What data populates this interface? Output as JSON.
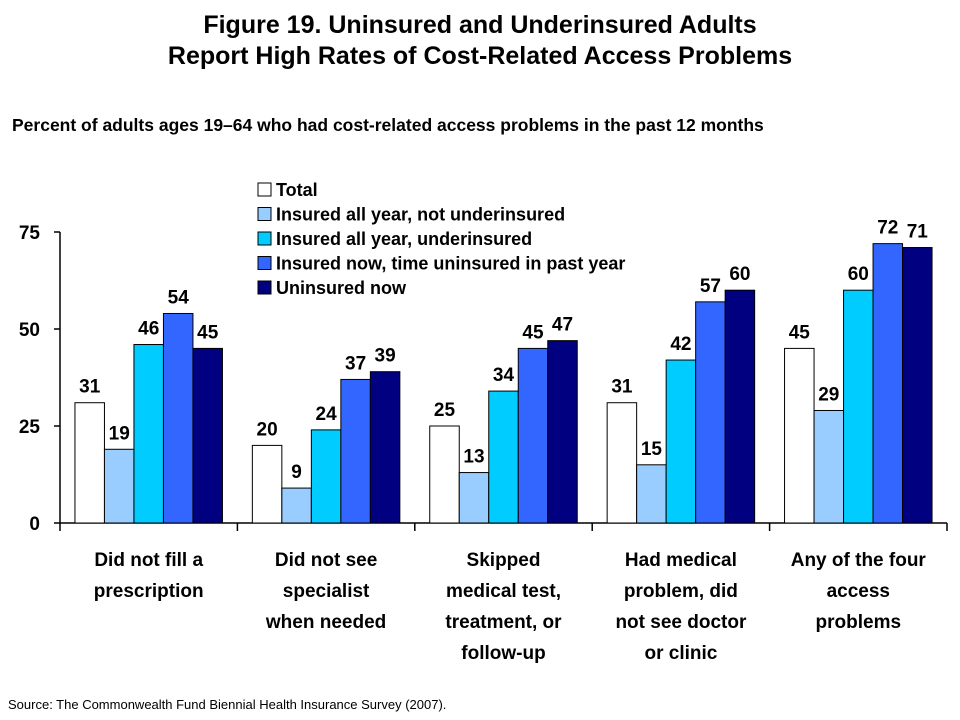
{
  "title": {
    "line1": "Figure 19. Uninsured and Underinsured Adults",
    "line2": "Report High Rates of Cost-Related Access Problems"
  },
  "subtitle": "Percent of adults ages 19–64 who had cost-related access problems in the past 12 months",
  "source": "Source: The Commonwealth Fund Biennial Health Insurance Survey (2007).",
  "chart_data": {
    "type": "bar",
    "title": "",
    "xlabel": "",
    "ylabel": "",
    "ylim": [
      0,
      75
    ],
    "yticks": [
      0,
      25,
      50,
      75
    ],
    "grid": false,
    "legend_position": "top-center",
    "categories": [
      [
        "Did not fill a",
        "prescription"
      ],
      [
        "Did not see",
        "specialist",
        "when needed"
      ],
      [
        "Skipped",
        "medical test,",
        "treatment, or",
        "follow-up"
      ],
      [
        "Had medical",
        "problem, did",
        "not see doctor",
        "or clinic"
      ],
      [
        "Any of the four",
        "access",
        "problems"
      ]
    ],
    "series": [
      {
        "name": "Total",
        "color": "#ffffff",
        "values": [
          31,
          20,
          25,
          31,
          45
        ]
      },
      {
        "name": "Insured all year, not underinsured",
        "color": "#99ccff",
        "values": [
          19,
          9,
          13,
          15,
          29
        ]
      },
      {
        "name": "Insured all year, underinsured",
        "color": "#00ccff",
        "values": [
          46,
          24,
          34,
          42,
          60
        ]
      },
      {
        "name": "Insured now, time uninsured in past year",
        "color": "#3366ff",
        "values": [
          54,
          37,
          45,
          57,
          72
        ]
      },
      {
        "name": "Uninsured now",
        "color": "#000080",
        "values": [
          45,
          39,
          47,
          60,
          71
        ]
      }
    ]
  }
}
